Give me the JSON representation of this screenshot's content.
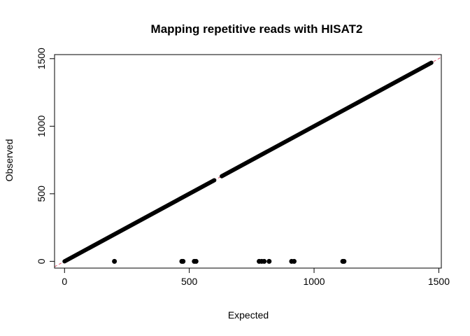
{
  "chart_data": {
    "type": "scatter",
    "title": "Mapping repetitive reads with HISAT2",
    "xlabel": "Expected",
    "ylabel": "Observed",
    "xlim": [
      -40,
      1510
    ],
    "ylim": [
      -50,
      1530
    ],
    "xticks": [
      0,
      500,
      1000,
      1500
    ],
    "yticks": [
      0,
      500,
      1000,
      1500
    ],
    "reference_line": {
      "slope": 1,
      "intercept": 0,
      "color": "#DF536B",
      "style": "dashed"
    },
    "point_color": "#000000",
    "diagonal_segments": [
      {
        "from": 0,
        "to": 600
      },
      {
        "from": 630,
        "to": 1470
      }
    ],
    "zero_observed_points": [
      200,
      470,
      475,
      520,
      527,
      780,
      790,
      800,
      820,
      910,
      920,
      1115,
      1120
    ]
  }
}
